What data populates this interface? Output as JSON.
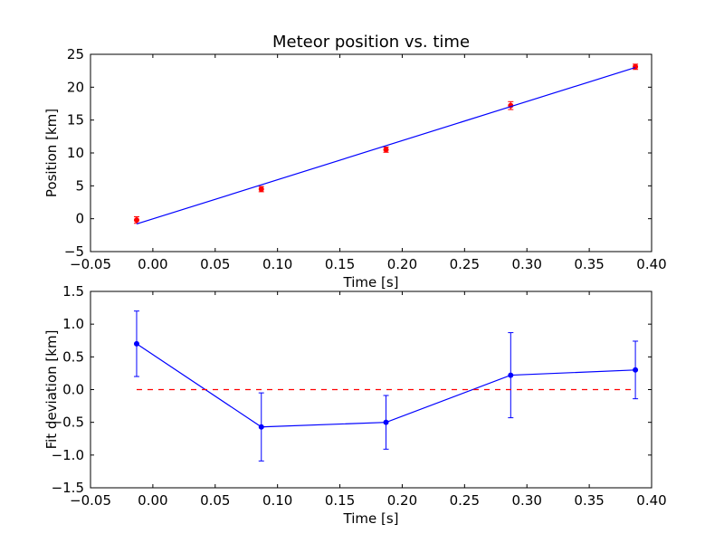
{
  "chart_data": [
    {
      "type": "scatter",
      "title": "Meteor position vs. time",
      "xlabel": "Time [s]",
      "ylabel": "Position [km]",
      "xlim": [
        -0.05,
        0.4
      ],
      "ylim": [
        -5,
        25
      ],
      "xticks": [
        -0.05,
        0.0,
        0.05,
        0.1,
        0.15,
        0.2,
        0.25,
        0.3,
        0.35,
        0.4
      ],
      "xtick_labels": [
        "−0.05",
        "0.00",
        "0.05",
        "0.10",
        "0.15",
        "0.20",
        "0.25",
        "0.30",
        "0.35",
        "0.40"
      ],
      "yticks": [
        -5,
        0,
        5,
        10,
        15,
        20,
        25
      ],
      "ytick_labels": [
        "−5",
        "0",
        "5",
        "10",
        "15",
        "20",
        "25"
      ],
      "grid": false,
      "series": [
        {
          "kind": "points-with-errorbars",
          "color": "#ff0000",
          "x": [
            -0.013,
            0.087,
            0.187,
            0.287,
            0.387
          ],
          "y": [
            -0.2,
            4.5,
            10.5,
            17.2,
            23.1
          ],
          "yerr": [
            0.5,
            0.4,
            0.4,
            0.6,
            0.4
          ]
        },
        {
          "kind": "line",
          "color": "#0000ff",
          "x": [
            -0.013,
            0.387
          ],
          "y": [
            -0.8,
            23.0
          ]
        }
      ]
    },
    {
      "type": "line",
      "title": "",
      "xlabel": "Time [s]",
      "ylabel": "Fit deviation [km]",
      "xlim": [
        -0.05,
        0.4
      ],
      "ylim": [
        -1.5,
        1.5
      ],
      "xticks": [
        -0.05,
        0.0,
        0.05,
        0.1,
        0.15,
        0.2,
        0.25,
        0.3,
        0.35,
        0.4
      ],
      "xtick_labels": [
        "−0.05",
        "0.00",
        "0.05",
        "0.10",
        "0.15",
        "0.20",
        "0.25",
        "0.30",
        "0.35",
        "0.40"
      ],
      "yticks": [
        -1.5,
        -1.0,
        -0.5,
        0.0,
        0.5,
        1.0,
        1.5
      ],
      "ytick_labels": [
        "−1.5",
        "−1.0",
        "−0.5",
        "0.0",
        "0.5",
        "1.0",
        "1.5"
      ],
      "grid": false,
      "series": [
        {
          "kind": "line-with-errorbars",
          "color": "#0000ff",
          "x": [
            -0.013,
            0.087,
            0.187,
            0.287,
            0.387
          ],
          "y": [
            0.7,
            -0.57,
            -0.5,
            0.22,
            0.3
          ],
          "yerr": [
            0.5,
            0.52,
            0.41,
            0.65,
            0.44
          ]
        },
        {
          "kind": "reference-dashed",
          "color": "#ff0000",
          "x": [
            -0.013,
            0.387
          ],
          "y": [
            0.0,
            0.0
          ]
        }
      ]
    }
  ]
}
